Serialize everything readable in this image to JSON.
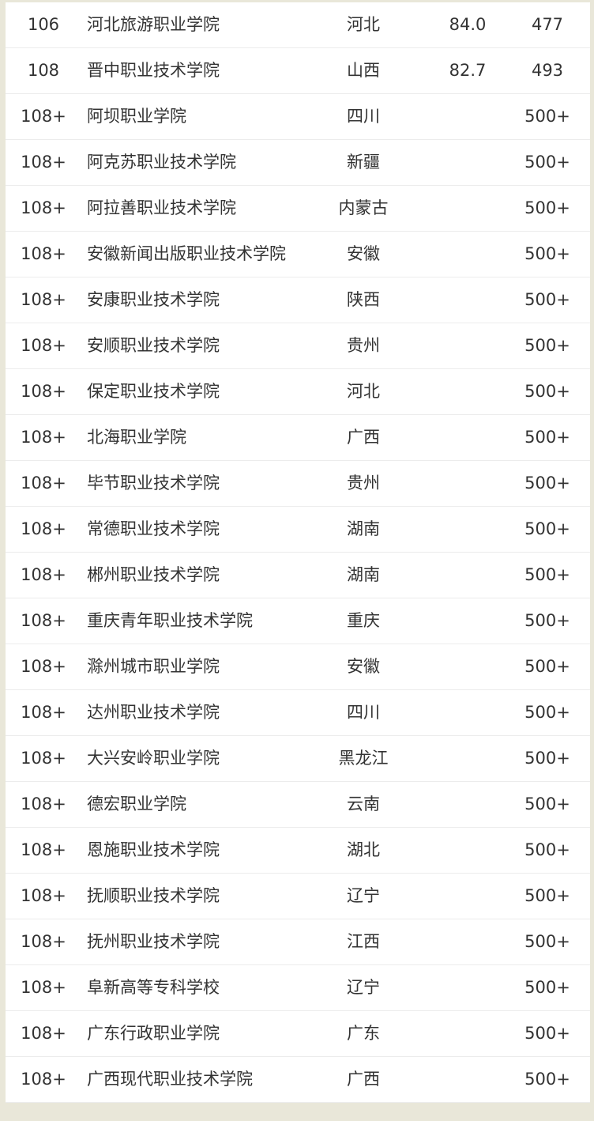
{
  "rows": [
    {
      "rank": "106",
      "name": "河北旅游职业学院",
      "province": "河北",
      "score": "84.0",
      "count": "477"
    },
    {
      "rank": "108",
      "name": "晋中职业技术学院",
      "province": "山西",
      "score": "82.7",
      "count": "493"
    },
    {
      "rank": "108+",
      "name": "阿坝职业学院",
      "province": "四川",
      "score": "",
      "count": "500+"
    },
    {
      "rank": "108+",
      "name": "阿克苏职业技术学院",
      "province": "新疆",
      "score": "",
      "count": "500+"
    },
    {
      "rank": "108+",
      "name": "阿拉善职业技术学院",
      "province": "内蒙古",
      "score": "",
      "count": "500+"
    },
    {
      "rank": "108+",
      "name": "安徽新闻出版职业技术学院",
      "province": "安徽",
      "score": "",
      "count": "500+"
    },
    {
      "rank": "108+",
      "name": "安康职业技术学院",
      "province": "陕西",
      "score": "",
      "count": "500+"
    },
    {
      "rank": "108+",
      "name": "安顺职业技术学院",
      "province": "贵州",
      "score": "",
      "count": "500+"
    },
    {
      "rank": "108+",
      "name": "保定职业技术学院",
      "province": "河北",
      "score": "",
      "count": "500+"
    },
    {
      "rank": "108+",
      "name": "北海职业学院",
      "province": "广西",
      "score": "",
      "count": "500+"
    },
    {
      "rank": "108+",
      "name": "毕节职业技术学院",
      "province": "贵州",
      "score": "",
      "count": "500+"
    },
    {
      "rank": "108+",
      "name": "常德职业技术学院",
      "province": "湖南",
      "score": "",
      "count": "500+"
    },
    {
      "rank": "108+",
      "name": "郴州职业技术学院",
      "province": "湖南",
      "score": "",
      "count": "500+"
    },
    {
      "rank": "108+",
      "name": "重庆青年职业技术学院",
      "province": "重庆",
      "score": "",
      "count": "500+"
    },
    {
      "rank": "108+",
      "name": "滁州城市职业学院",
      "province": "安徽",
      "score": "",
      "count": "500+"
    },
    {
      "rank": "108+",
      "name": "达州职业技术学院",
      "province": "四川",
      "score": "",
      "count": "500+"
    },
    {
      "rank": "108+",
      "name": "大兴安岭职业学院",
      "province": "黑龙江",
      "score": "",
      "count": "500+"
    },
    {
      "rank": "108+",
      "name": "德宏职业学院",
      "province": "云南",
      "score": "",
      "count": "500+"
    },
    {
      "rank": "108+",
      "name": "恩施职业技术学院",
      "province": "湖北",
      "score": "",
      "count": "500+"
    },
    {
      "rank": "108+",
      "name": "抚顺职业技术学院",
      "province": "辽宁",
      "score": "",
      "count": "500+"
    },
    {
      "rank": "108+",
      "name": "抚州职业技术学院",
      "province": "江西",
      "score": "",
      "count": "500+"
    },
    {
      "rank": "108+",
      "name": "阜新高等专科学校",
      "province": "辽宁",
      "score": "",
      "count": "500+"
    },
    {
      "rank": "108+",
      "name": "广东行政职业学院",
      "province": "广东",
      "score": "",
      "count": "500+"
    },
    {
      "rank": "108+",
      "name": "广西现代职业技术学院",
      "province": "广西",
      "score": "",
      "count": "500+"
    }
  ]
}
